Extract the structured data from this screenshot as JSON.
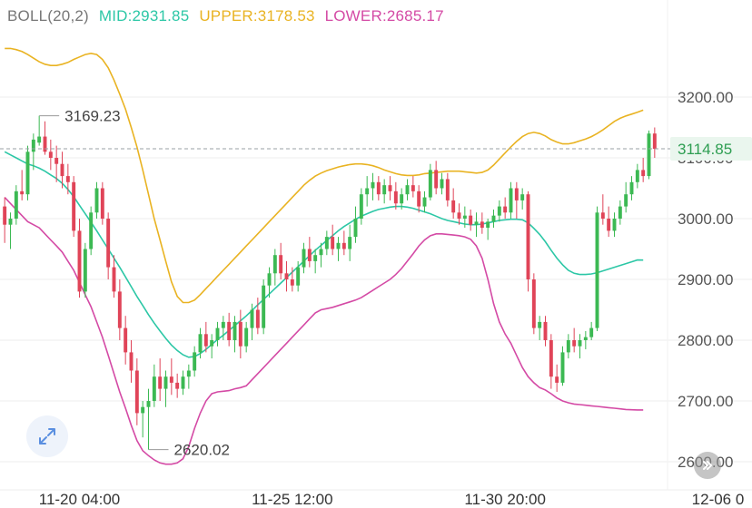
{
  "legend": {
    "indicator": "BOLL(20,2)",
    "mid_label": "MID:2931.85",
    "upper_label": "UPPER:3178.53",
    "lower_label": "LOWER:2685.17"
  },
  "colors": {
    "mid": "#2cc7a6",
    "upper": "#e9b322",
    "lower": "#d44aa5",
    "up": "#3cb953",
    "down": "#e04458",
    "grid": "#eeeeee",
    "price_line": "#9aa0a6",
    "axis_text": "#555555",
    "current_price": "#2e9e52"
  },
  "icons": {
    "expand": "expand-arrows-icon",
    "scroll_right": "chevron-right-icon"
  },
  "chart_data": {
    "type": "candlestick",
    "y_ticks": [
      "3200.00",
      "3100.00",
      "3000.00",
      "2900.00",
      "2800.00",
      "2700.00",
      "2600.00"
    ],
    "y_tick_values": [
      3200,
      3100,
      3000,
      2900,
      2800,
      2700,
      2600
    ],
    "x_ticks": [
      "11-20 04:00",
      "11-25 12:00",
      "11-30 20:00",
      "12-06 0"
    ],
    "x_tick_index": [
      13,
      50,
      87,
      124
    ],
    "ylim": [
      2590,
      3305
    ],
    "current_price": "3114.85",
    "current_price_value": 3114.85,
    "high_label": "3169.23",
    "high_value": 3169.23,
    "high_index": 6,
    "low_label": "2620.02",
    "low_value": 2620.02,
    "low_index": 25,
    "candles": [
      [
        3020,
        3035,
        2960,
        2990
      ],
      [
        2990,
        3010,
        2950,
        3000
      ],
      [
        3000,
        3055,
        2990,
        3045
      ],
      [
        3045,
        3080,
        3030,
        3040
      ],
      [
        3040,
        3120,
        3030,
        3110
      ],
      [
        3110,
        3140,
        3080,
        3130
      ],
      [
        3125,
        3169.23,
        3120,
        3135
      ],
      [
        3135,
        3160,
        3105,
        3110
      ],
      [
        3110,
        3130,
        3080,
        3100
      ],
      [
        3100,
        3120,
        3060,
        3090
      ],
      [
        3090,
        3110,
        3050,
        3070
      ],
      [
        3070,
        3090,
        3040,
        3060
      ],
      [
        3060,
        3070,
        2970,
        2980
      ],
      [
        2980,
        3000,
        2870,
        2880
      ],
      [
        2880,
        2960,
        2870,
        2950
      ],
      [
        2950,
        3020,
        2940,
        3010
      ],
      [
        3010,
        3060,
        3000,
        3050
      ],
      [
        3050,
        3060,
        2990,
        3000
      ],
      [
        3000,
        3010,
        2900,
        2920
      ],
      [
        2920,
        2940,
        2870,
        2880
      ],
      [
        2880,
        2900,
        2800,
        2820
      ],
      [
        2820,
        2840,
        2760,
        2780
      ],
      [
        2780,
        2800,
        2730,
        2750
      ],
      [
        2750,
        2770,
        2660,
        2680
      ],
      [
        2680,
        2700,
        2640,
        2690
      ],
      [
        2690,
        2720,
        2620.02,
        2700
      ],
      [
        2700,
        2760,
        2690,
        2740
      ],
      [
        2740,
        2770,
        2700,
        2720
      ],
      [
        2720,
        2750,
        2690,
        2740
      ],
      [
        2740,
        2770,
        2710,
        2730
      ],
      [
        2730,
        2745,
        2705,
        2720
      ],
      [
        2720,
        2750,
        2710,
        2740
      ],
      [
        2740,
        2760,
        2720,
        2750
      ],
      [
        2750,
        2790,
        2740,
        2780
      ],
      [
        2780,
        2820,
        2770,
        2810
      ],
      [
        2810,
        2830,
        2780,
        2790
      ],
      [
        2790,
        2810,
        2770,
        2800
      ],
      [
        2800,
        2830,
        2790,
        2820
      ],
      [
        2820,
        2840,
        2800,
        2830
      ],
      [
        2830,
        2845,
        2790,
        2800
      ],
      [
        2800,
        2840,
        2780,
        2830
      ],
      [
        2830,
        2850,
        2770,
        2790
      ],
      [
        2790,
        2830,
        2780,
        2820
      ],
      [
        2820,
        2860,
        2800,
        2850
      ],
      [
        2850,
        2870,
        2810,
        2820
      ],
      [
        2820,
        2900,
        2810,
        2890
      ],
      [
        2890,
        2920,
        2870,
        2910
      ],
      [
        2910,
        2950,
        2890,
        2940
      ],
      [
        2940,
        2960,
        2900,
        2910
      ],
      [
        2910,
        2930,
        2880,
        2900
      ],
      [
        2900,
        2920,
        2880,
        2890
      ],
      [
        2890,
        2930,
        2880,
        2920
      ],
      [
        2920,
        2960,
        2910,
        2950
      ],
      [
        2950,
        2970,
        2920,
        2930
      ],
      [
        2930,
        2950,
        2910,
        2940
      ],
      [
        2940,
        2960,
        2920,
        2950
      ],
      [
        2950,
        2980,
        2940,
        2970
      ],
      [
        2970,
        2990,
        2940,
        2950
      ],
      [
        2950,
        2970,
        2930,
        2960
      ],
      [
        2960,
        2980,
        2940,
        2950
      ],
      [
        2950,
        2990,
        2930,
        2970
      ],
      [
        2970,
        3020,
        2960,
        3000
      ],
      [
        3000,
        3050,
        2990,
        3040
      ],
      [
        3040,
        3070,
        3020,
        3050
      ],
      [
        3050,
        3075,
        3030,
        3060
      ],
      [
        3060,
        3070,
        3030,
        3040
      ],
      [
        3040,
        3065,
        3025,
        3055
      ],
      [
        3055,
        3070,
        3030,
        3045
      ],
      [
        3045,
        3060,
        3015,
        3025
      ],
      [
        3025,
        3050,
        3015,
        3040
      ],
      [
        3040,
        3065,
        3030,
        3055
      ],
      [
        3055,
        3070,
        3035,
        3045
      ],
      [
        3045,
        3055,
        3010,
        3020
      ],
      [
        3020,
        3045,
        3010,
        3035
      ],
      [
        3035,
        3090,
        3030,
        3080
      ],
      [
        3080,
        3095,
        3040,
        3050
      ],
      [
        3050,
        3075,
        3040,
        3065
      ],
      [
        3065,
        3075,
        3020,
        3030
      ],
      [
        3030,
        3050,
        3000,
        3010
      ],
      [
        3010,
        3025,
        2990,
        3000
      ],
      [
        3000,
        3020,
        2985,
        3005
      ],
      [
        3005,
        3015,
        2980,
        2990
      ],
      [
        2990,
        3010,
        2970,
        2995
      ],
      [
        2995,
        3010,
        2975,
        2985
      ],
      [
        2985,
        3000,
        2965,
        2995
      ],
      [
        2995,
        3015,
        2985,
        3005
      ],
      [
        3005,
        3030,
        2995,
        3020
      ],
      [
        3020,
        3035,
        3000,
        3010
      ],
      [
        3010,
        3060,
        3000,
        3050
      ],
      [
        3050,
        3060,
        3000,
        3030
      ],
      [
        3030,
        3050,
        3015,
        3040
      ],
      [
        3040,
        3045,
        2880,
        2900
      ],
      [
        2900,
        2910,
        2810,
        2820
      ],
      [
        2820,
        2840,
        2800,
        2830
      ],
      [
        2830,
        2840,
        2790,
        2800
      ],
      [
        2800,
        2810,
        2720,
        2740
      ],
      [
        2740,
        2760,
        2715,
        2730
      ],
      [
        2730,
        2790,
        2725,
        2780
      ],
      [
        2780,
        2810,
        2770,
        2800
      ],
      [
        2800,
        2820,
        2780,
        2790
      ],
      [
        2790,
        2810,
        2770,
        2800
      ],
      [
        2800,
        2815,
        2785,
        2805
      ],
      [
        2805,
        2830,
        2800,
        2820
      ],
      [
        2820,
        3020,
        2815,
        3010
      ],
      [
        3010,
        3040,
        2990,
        3000
      ],
      [
        3000,
        3020,
        2970,
        2980
      ],
      [
        2980,
        3010,
        2970,
        3000
      ],
      [
        3000,
        3030,
        2990,
        3020
      ],
      [
        3020,
        3060,
        3010,
        3040
      ],
      [
        3040,
        3070,
        3030,
        3060
      ],
      [
        3060,
        3090,
        3050,
        3080
      ],
      [
        3080,
        3100,
        3060,
        3070
      ],
      [
        3070,
        3145,
        3065,
        3140
      ],
      [
        3140,
        3150,
        3100,
        3114.85
      ]
    ],
    "mid": [
      3110,
      3105,
      3100,
      3095,
      3090,
      3087,
      3083,
      3078,
      3072,
      3066,
      3058,
      3048,
      3036,
      3022,
      3008,
      2994,
      2980,
      2965,
      2950,
      2935,
      2920,
      2904,
      2888,
      2872,
      2857,
      2842,
      2828,
      2815,
      2803,
      2792,
      2783,
      2776,
      2772,
      2773,
      2778,
      2785,
      2793,
      2801,
      2808,
      2816,
      2824,
      2832,
      2840,
      2849,
      2858,
      2867,
      2876,
      2885,
      2894,
      2903,
      2912,
      2921,
      2930,
      2939,
      2948,
      2956,
      2964,
      2972,
      2980,
      2987,
      2993,
      2999,
      3004,
      3008,
      3012,
      3015,
      3017,
      3019,
      3020,
      3020,
      3019,
      3017,
      3014,
      3011,
      3008,
      3004,
      3000,
      2997,
      2995,
      2993,
      2991,
      2990,
      2990,
      2991,
      2993,
      2995,
      2997,
      2998,
      2999,
      2999,
      2998,
      2993,
      2984,
      2974,
      2962,
      2948,
      2935,
      2924,
      2915,
      2910,
      2908,
      2908,
      2909,
      2911,
      2914,
      2917,
      2920,
      2923,
      2926,
      2929,
      2932,
      2931.85
    ],
    "upper": [
      3280,
      3280,
      3278,
      3275,
      3270,
      3264,
      3258,
      3254,
      3252,
      3252,
      3254,
      3257,
      3262,
      3266,
      3270,
      3272,
      3270,
      3262,
      3248,
      3228,
      3205,
      3180,
      3150,
      3118,
      3080,
      3040,
      3000,
      2965,
      2930,
      2896,
      2872,
      2862,
      2862,
      2866,
      2875,
      2885,
      2895,
      2905,
      2915,
      2925,
      2935,
      2945,
      2955,
      2965,
      2975,
      2985,
      2995,
      3005,
      3015,
      3025,
      3035,
      3045,
      3055,
      3063,
      3070,
      3075,
      3079,
      3082,
      3085,
      3087,
      3089,
      3090,
      3090,
      3089,
      3087,
      3084,
      3080,
      3077,
      3074,
      3072,
      3071,
      3071,
      3072,
      3074,
      3075,
      3076,
      3077,
      3078,
      3078,
      3078,
      3077,
      3076,
      3075,
      3076,
      3080,
      3088,
      3098,
      3108,
      3118,
      3127,
      3135,
      3140,
      3142,
      3140,
      3136,
      3130,
      3126,
      3123,
      3123,
      3125,
      3128,
      3131,
      3135,
      3140,
      3146,
      3153,
      3160,
      3165,
      3169,
      3172,
      3175,
      3178.53
    ],
    "lower": [
      3035,
      3025,
      3015,
      3005,
      2995,
      2990,
      2985,
      2975,
      2965,
      2955,
      2945,
      2930,
      2915,
      2895,
      2875,
      2855,
      2830,
      2805,
      2775,
      2745,
      2715,
      2688,
      2660,
      2635,
      2618,
      2610,
      2603,
      2598,
      2596,
      2596,
      2598,
      2605,
      2625,
      2655,
      2680,
      2700,
      2712,
      2715,
      2716,
      2717,
      2720,
      2722,
      2725,
      2735,
      2745,
      2755,
      2765,
      2775,
      2785,
      2795,
      2805,
      2815,
      2825,
      2835,
      2845,
      2850,
      2852,
      2854,
      2857,
      2860,
      2863,
      2866,
      2870,
      2876,
      2882,
      2888,
      2894,
      2900,
      2908,
      2918,
      2930,
      2942,
      2955,
      2965,
      2972,
      2975,
      2975,
      2974,
      2973,
      2972,
      2970,
      2966,
      2955,
      2935,
      2900,
      2860,
      2830,
      2810,
      2795,
      2775,
      2755,
      2740,
      2730,
      2722,
      2718,
      2712,
      2705,
      2700,
      2697,
      2695,
      2694,
      2693,
      2692,
      2691,
      2690,
      2689,
      2688,
      2687,
      2686,
      2685.5,
      2685.2,
      2685.17
    ]
  }
}
